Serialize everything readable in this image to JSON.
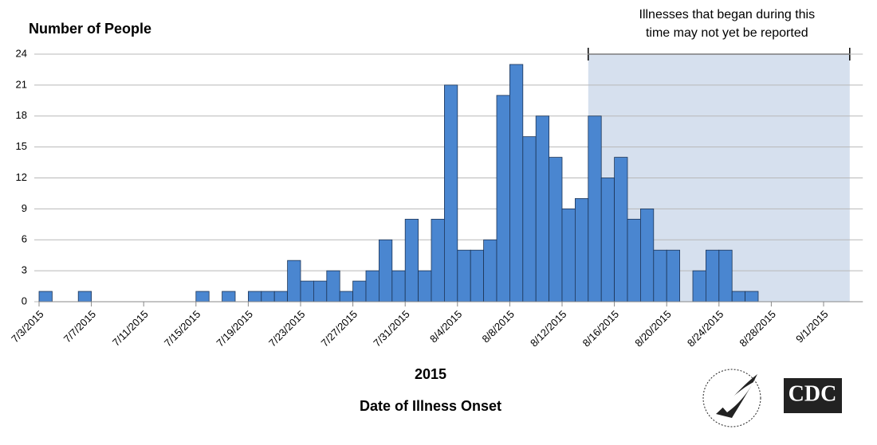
{
  "chart_data": {
    "type": "bar",
    "y_label": "Number of People",
    "x_label": "Date of Illness Onset",
    "x_sublabel": "2015",
    "categories": [
      "7/3/2015",
      null,
      null,
      null,
      "7/7/2015",
      null,
      null,
      null,
      "7/11/2015",
      null,
      null,
      null,
      "7/15/2015",
      null,
      null,
      null,
      "7/19/2015",
      null,
      null,
      null,
      "7/23/2015",
      null,
      null,
      null,
      "7/27/2015",
      null,
      null,
      null,
      "7/31/2015",
      null,
      null,
      null,
      "8/4/2015",
      null,
      null,
      null,
      "8/8/2015",
      null,
      null,
      null,
      "8/12/2015",
      null,
      null,
      null,
      "8/16/2015",
      null,
      null,
      null,
      "8/20/2015",
      null,
      null,
      null,
      "8/24/2015",
      null,
      null,
      null,
      "8/28/2015",
      null,
      null,
      null,
      "9/1/2015",
      null,
      null
    ],
    "values": [
      1,
      0,
      0,
      1,
      0,
      0,
      0,
      0,
      0,
      0,
      0,
      0,
      1,
      0,
      1,
      0,
      1,
      1,
      1,
      4,
      2,
      2,
      3,
      1,
      2,
      3,
      6,
      3,
      8,
      3,
      8,
      21,
      5,
      5,
      6,
      20,
      23,
      16,
      18,
      14,
      9,
      10,
      18,
      12,
      14,
      8,
      9,
      5,
      5,
      0,
      3,
      5,
      5,
      1,
      1,
      0,
      0,
      0,
      0,
      0,
      0,
      0,
      0
    ],
    "color": "#4a86d0",
    "ylim": [
      0,
      24
    ],
    "yticks": [
      0,
      3,
      6,
      9,
      12,
      15,
      18,
      21,
      24
    ],
    "grid": true,
    "annotation": {
      "lines": [
        "Illnesses that began during this",
        "time may not yet be reported"
      ],
      "start": 42,
      "end": 61,
      "color": "#d6e0ee"
    },
    "logo": "CDC"
  }
}
